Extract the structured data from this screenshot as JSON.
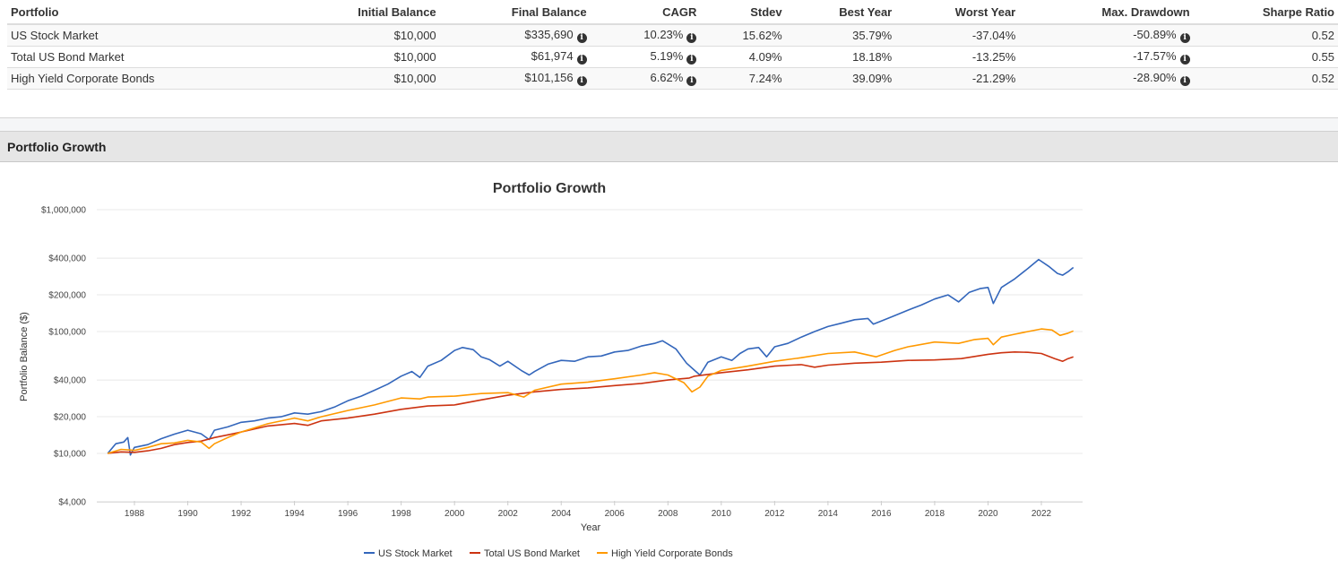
{
  "table": {
    "headers": [
      "Portfolio",
      "Initial Balance",
      "Final Balance",
      "CAGR",
      "Stdev",
      "Best Year",
      "Worst Year",
      "Max. Drawdown",
      "Sharpe Ratio"
    ],
    "rows": [
      {
        "portfolio": "US Stock Market",
        "initial": "$10,000",
        "final": "$335,690",
        "cagr": "10.23%",
        "stdev": "15.62%",
        "best": "35.79%",
        "worst": "-37.04%",
        "maxdd": "-50.89%",
        "sharpe": "0.52"
      },
      {
        "portfolio": "Total US Bond Market",
        "initial": "$10,000",
        "final": "$61,974",
        "cagr": "5.19%",
        "stdev": "4.09%",
        "best": "18.18%",
        "worst": "-13.25%",
        "maxdd": "-17.57%",
        "sharpe": "0.55"
      },
      {
        "portfolio": "High Yield Corporate Bonds",
        "initial": "$10,000",
        "final": "$101,156",
        "cagr": "6.62%",
        "stdev": "7.24%",
        "best": "39.09%",
        "worst": "-21.29%",
        "maxdd": "-28.90%",
        "sharpe": "0.52"
      }
    ],
    "info_icon_glyph": "i"
  },
  "section": {
    "title": "Portfolio Growth"
  },
  "chart_data": {
    "type": "line",
    "title": "Portfolio Growth",
    "xlabel": "Year",
    "ylabel": "Portfolio Balance ($)",
    "yscale": "log",
    "ylim": [
      4000,
      1000000
    ],
    "xlim": [
      1986.6,
      2024.0
    ],
    "yticks": [
      4000,
      10000,
      20000,
      40000,
      100000,
      200000,
      400000,
      1000000
    ],
    "ytick_labels": [
      "$4,000",
      "$10,000",
      "$20,000",
      "$40,000",
      "$100,000",
      "$200,000",
      "$400,000",
      "$1,000,000"
    ],
    "xticks": [
      1988,
      1990,
      1992,
      1994,
      1996,
      1998,
      2000,
      2002,
      2004,
      2006,
      2008,
      2010,
      2012,
      2014,
      2016,
      2018,
      2020,
      2022
    ],
    "grid": true,
    "legend": "bottom-center",
    "series": [
      {
        "name": "US Stock Market",
        "color": "#3366bb",
        "x": [
          1987.0,
          1987.3,
          1987.6,
          1987.75,
          1987.85,
          1988.0,
          1988.5,
          1989.0,
          1989.5,
          1990.0,
          1990.5,
          1990.8,
          1991.0,
          1991.5,
          1992.0,
          1992.5,
          1993.0,
          1993.5,
          1994.0,
          1994.5,
          1995.0,
          1995.5,
          1996.0,
          1996.5,
          1997.0,
          1997.5,
          1998.0,
          1998.4,
          1998.7,
          1999.0,
          1999.5,
          2000.0,
          2000.3,
          2000.7,
          2001.0,
          2001.3,
          2001.7,
          2002.0,
          2002.5,
          2002.8,
          2003.0,
          2003.5,
          2004.0,
          2004.5,
          2005.0,
          2005.5,
          2006.0,
          2006.5,
          2007.0,
          2007.5,
          2007.8,
          2008.3,
          2008.7,
          2009.0,
          2009.2,
          2009.5,
          2010.0,
          2010.4,
          2010.7,
          2011.0,
          2011.4,
          2011.7,
          2012.0,
          2012.5,
          2013.0,
          2013.5,
          2014.0,
          2014.5,
          2015.0,
          2015.5,
          2015.7,
          2016.0,
          2016.5,
          2017.0,
          2017.5,
          2018.0,
          2018.5,
          2018.9,
          2019.3,
          2019.7,
          2020.0,
          2020.2,
          2020.5,
          2021.0,
          2021.5,
          2021.9,
          2022.3,
          2022.6,
          2022.8,
          2023.0,
          2023.2
        ],
        "values": [
          10000,
          12000,
          12400,
          13500,
          9700,
          11200,
          11800,
          13200,
          14400,
          15500,
          14500,
          13000,
          15500,
          16500,
          18000,
          18500,
          19500,
          20000,
          21500,
          21000,
          22000,
          24000,
          27000,
          29500,
          33000,
          37000,
          43000,
          47000,
          42000,
          52000,
          58000,
          70000,
          74000,
          71000,
          62000,
          59000,
          52000,
          57000,
          48000,
          44000,
          47000,
          54000,
          58000,
          57000,
          62000,
          63000,
          68000,
          70000,
          76000,
          80000,
          84000,
          72000,
          55000,
          48000,
          44000,
          56000,
          62000,
          58000,
          66000,
          72000,
          74000,
          62000,
          75000,
          80000,
          90000,
          100000,
          110000,
          117000,
          125000,
          128000,
          115000,
          122000,
          135000,
          150000,
          165000,
          185000,
          200000,
          175000,
          210000,
          225000,
          230000,
          170000,
          230000,
          270000,
          330000,
          390000,
          340000,
          300000,
          290000,
          310000,
          335690
        ]
      },
      {
        "name": "Total US Bond Market",
        "color": "#cc3311",
        "x": [
          1987.0,
          1987.5,
          1988.0,
          1988.5,
          1989.0,
          1989.5,
          1990.0,
          1990.5,
          1991.0,
          1991.5,
          1992.0,
          1993.0,
          1994.0,
          1994.5,
          1995.0,
          1996.0,
          1997.0,
          1998.0,
          1999.0,
          2000.0,
          2001.0,
          2002.0,
          2003.0,
          2004.0,
          2005.0,
          2006.0,
          2007.0,
          2008.0,
          2008.8,
          2009.0,
          2010.0,
          2011.0,
          2012.0,
          2013.0,
          2013.5,
          2014.0,
          2015.0,
          2016.0,
          2017.0,
          2018.0,
          2019.0,
          2020.0,
          2020.5,
          2021.0,
          2021.5,
          2022.0,
          2022.5,
          2022.8,
          2023.0,
          2023.2
        ],
        "values": [
          10000,
          10300,
          10200,
          10500,
          11000,
          11800,
          12300,
          12600,
          13500,
          14200,
          15000,
          16800,
          17600,
          17000,
          18500,
          19500,
          21000,
          23000,
          24500,
          25000,
          27500,
          30000,
          32000,
          33500,
          34500,
          36000,
          37500,
          40000,
          41500,
          43000,
          46000,
          48500,
          52000,
          53500,
          51000,
          53000,
          55000,
          56000,
          58000,
          58500,
          60000,
          65000,
          67000,
          68000,
          67500,
          66000,
          60000,
          57000,
          60000,
          61974
        ]
      },
      {
        "name": "High Yield Corporate Bonds",
        "color": "#ff9900",
        "x": [
          1987.0,
          1987.5,
          1988.0,
          1988.5,
          1989.0,
          1989.5,
          1990.0,
          1990.5,
          1990.8,
          1991.0,
          1991.5,
          1992.0,
          1993.0,
          1994.0,
          1994.5,
          1995.0,
          1996.0,
          1997.0,
          1998.0,
          1998.7,
          1999.0,
          2000.0,
          2000.7,
          2001.0,
          2002.0,
          2002.6,
          2003.0,
          2004.0,
          2005.0,
          2006.0,
          2007.0,
          2007.5,
          2008.0,
          2008.6,
          2008.9,
          2009.2,
          2009.5,
          2010.0,
          2011.0,
          2012.0,
          2013.0,
          2014.0,
          2015.0,
          2015.8,
          2016.5,
          2017.0,
          2018.0,
          2018.9,
          2019.5,
          2020.0,
          2020.2,
          2020.5,
          2021.0,
          2021.5,
          2022.0,
          2022.4,
          2022.7,
          2023.0,
          2023.2
        ],
        "values": [
          10000,
          10800,
          10600,
          11200,
          12000,
          12200,
          12800,
          12400,
          11000,
          12000,
          13500,
          15000,
          17500,
          19500,
          18500,
          20000,
          22500,
          25000,
          28500,
          28000,
          29000,
          29500,
          30500,
          31000,
          31500,
          29000,
          33000,
          37000,
          38500,
          41000,
          44000,
          46000,
          44000,
          38000,
          32000,
          35000,
          43000,
          48000,
          52000,
          57000,
          61000,
          66000,
          68000,
          62000,
          70000,
          75000,
          82000,
          80000,
          86000,
          88000,
          78000,
          90000,
          95000,
          100000,
          105000,
          103000,
          93000,
          97000,
          101156
        ]
      }
    ]
  }
}
